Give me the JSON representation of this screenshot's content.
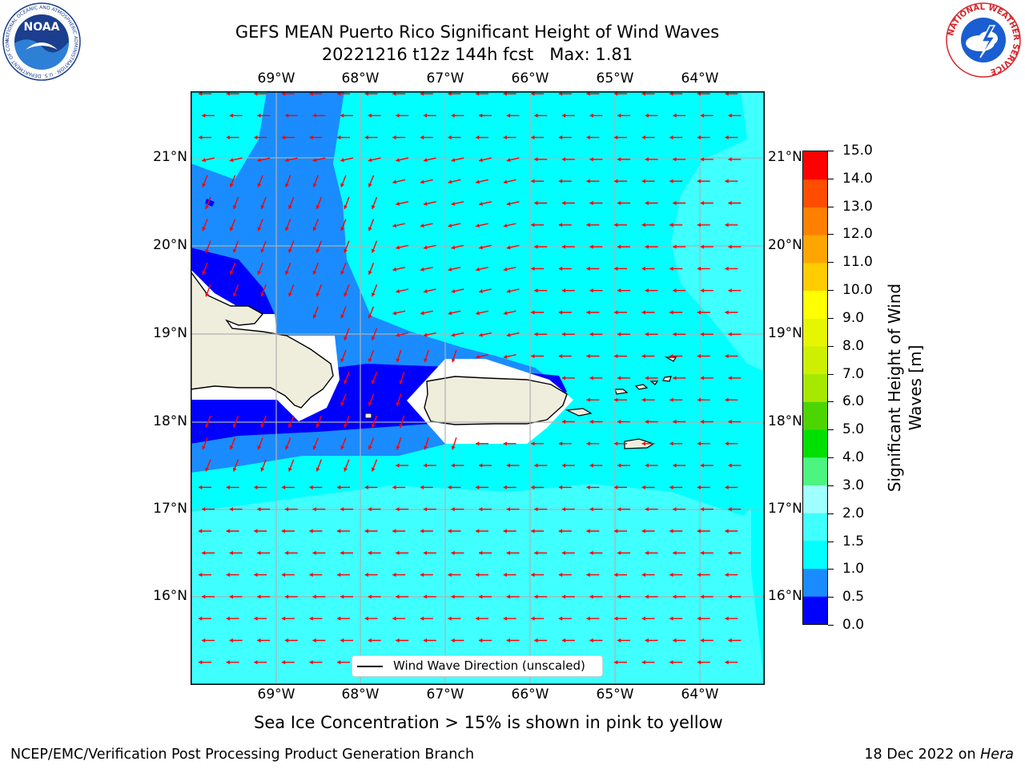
{
  "title": {
    "line1": "GEFS MEAN Puerto Rico Significant Height of Wind Waves",
    "line2": "20221216 t12z 144h fcst   Max: 1.81"
  },
  "lon_labels": [
    "69°W",
    "68°W",
    "67°W",
    "66°W",
    "65°W",
    "64°W"
  ],
  "lat_labels": [
    "21°N",
    "20°N",
    "19°N",
    "18°N",
    "17°N",
    "16°N"
  ],
  "map_extent": {
    "lon": [
      -69.95,
      -63.25
    ],
    "lat": [
      15.0,
      21.75
    ]
  },
  "legend": {
    "label": "Wind Wave Direction (unscaled)"
  },
  "colorbar": {
    "label_line1": "Significant Height of Wind",
    "label_line2": "Waves [m]",
    "levels": [
      0.0,
      0.5,
      1.0,
      1.5,
      2.0,
      3.0,
      4.0,
      5.0,
      6.0,
      7.0,
      8.0,
      9.0,
      10.0,
      11.0,
      12.0,
      13.0,
      14.0,
      15.0
    ],
    "tick_labels": [
      "0.0",
      "0.5",
      "1.0",
      "1.5",
      "2.0",
      "3.0",
      "4.0",
      "5.0",
      "6.0",
      "7.0",
      "8.0",
      "9.0",
      "10.0",
      "11.0",
      "12.0",
      "13.0",
      "14.0",
      "15.0"
    ],
    "colors": [
      "#0000ff",
      "#1a8cff",
      "#00ffff",
      "#40ffff",
      "#a0ffff",
      "#4cf582",
      "#00e000",
      "#4cd500",
      "#a6e800",
      "#ccf000",
      "#e6f500",
      "#ffff00",
      "#ffcc00",
      "#ffa500",
      "#ff7f00",
      "#ff4d00",
      "#ff0000"
    ]
  },
  "subtitle": "Sea Ice Concentration > 15% is shown in pink to yellow",
  "footer": {
    "left": "NCEP/EMC/Verification Post Processing Product Generation Branch",
    "right_prefix": "18 Dec 2022 on ",
    "right_host": "Hera"
  },
  "logos": {
    "noaa": {
      "text": "NOAA",
      "ring_text": "NATIONAL OCEANIC AND ATMOSPHERIC ADMINISTRATION · U.S. DEPARTMENT OF COMMERCE"
    },
    "nws": {
      "ring_text": "NATIONAL WEATHER SERVICE"
    }
  },
  "arrow_color": "#ff0000"
}
